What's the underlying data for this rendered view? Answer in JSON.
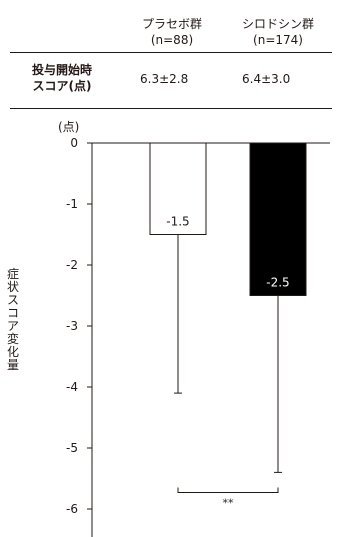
{
  "table": {
    "columns": [
      {
        "name": "プラセボ群",
        "n": "(n=88)"
      },
      {
        "name": "シロドシン群",
        "n": "(n=174)"
      }
    ],
    "row_label_line1": "投与開始時",
    "row_label_line2": "スコア(点)",
    "values": [
      "6.3±2.8",
      "6.4±3.0"
    ]
  },
  "chart_data": {
    "type": "bar",
    "categories": [
      "プラセボ群",
      "シロドシン群"
    ],
    "values": [
      -1.5,
      -2.5
    ],
    "error_lower": [
      -4.1,
      -5.4
    ],
    "value_labels": [
      "-1.5",
      "-2.5"
    ],
    "bar_colors": [
      "#ffffff",
      "#000000"
    ],
    "unit_label": "(点)",
    "ylabel": "症状スコア変化量",
    "ylim": [
      -6.5,
      0
    ],
    "yticks": [
      0,
      -1,
      -2,
      -3,
      -4,
      -5,
      -6
    ],
    "significance": "**"
  }
}
